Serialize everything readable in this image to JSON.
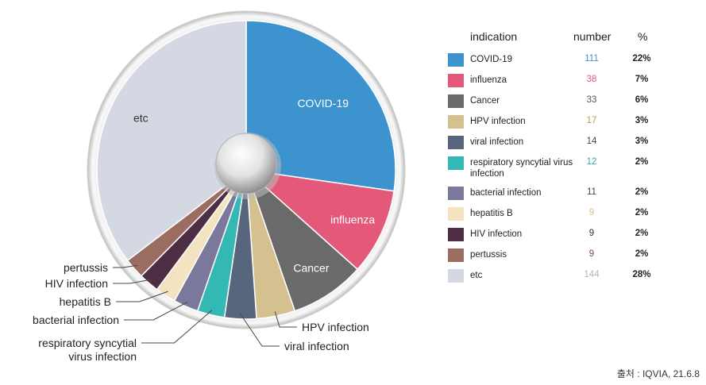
{
  "chart_data": {
    "type": "pie",
    "headers": {
      "label": "indication",
      "count": "number",
      "pct": "%"
    },
    "slices": [
      {
        "label": "COVID-19",
        "chart_label": "COVID-19",
        "count": 111,
        "pct": "22%",
        "color": "#3d93cd",
        "count_color": "#3d93cd"
      },
      {
        "label": "influenza",
        "chart_label": "influenza",
        "count": 38,
        "pct": "7%",
        "color": "#e4587a",
        "count_color": "#e4587a"
      },
      {
        "label": "Cancer",
        "chart_label": "Cancer",
        "count": 33,
        "pct": "6%",
        "color": "#6a6a6a",
        "count_color": "#555555"
      },
      {
        "label": "HPV infection",
        "chart_label": "HPV infection",
        "count": 17,
        "pct": "3%",
        "color": "#d5c08f",
        "count_color": "#b79a55"
      },
      {
        "label": "viral infection",
        "chart_label": "viral infection",
        "count": 14,
        "pct": "3%",
        "color": "#57657d",
        "count_color": "#444444"
      },
      {
        "label": "respiratory syncytial virus infection",
        "chart_label": "respiratory syncytial virus infection",
        "count": 12,
        "pct": "2%",
        "color": "#33b8b3",
        "count_color": "#2aa8a3"
      },
      {
        "label": "bacterial infection",
        "chart_label": "bacterial infection",
        "count": 11,
        "pct": "2%",
        "color": "#7a789b",
        "count_color": "#444444"
      },
      {
        "label": "hepatitis B",
        "chart_label": "hepatitis B",
        "count": 9,
        "pct": "2%",
        "color": "#f4e3c0",
        "count_color": "#d9bf86"
      },
      {
        "label": "HIV infection",
        "chart_label": "HIV infection",
        "count": 9,
        "pct": "2%",
        "color": "#4d2e45",
        "count_color": "#333333"
      },
      {
        "label": "pertussis",
        "chart_label": "pertussis",
        "count": 9,
        "pct": "2%",
        "color": "#9a6d60",
        "count_color": "#7a4f43"
      },
      {
        "label": "etc",
        "chart_label": "etc",
        "count": 144,
        "pct": "28%",
        "color": "#d4d8e2",
        "count_color": "#b5b5b5"
      }
    ]
  },
  "source": "출처 : IQVIA, 21.6.8"
}
